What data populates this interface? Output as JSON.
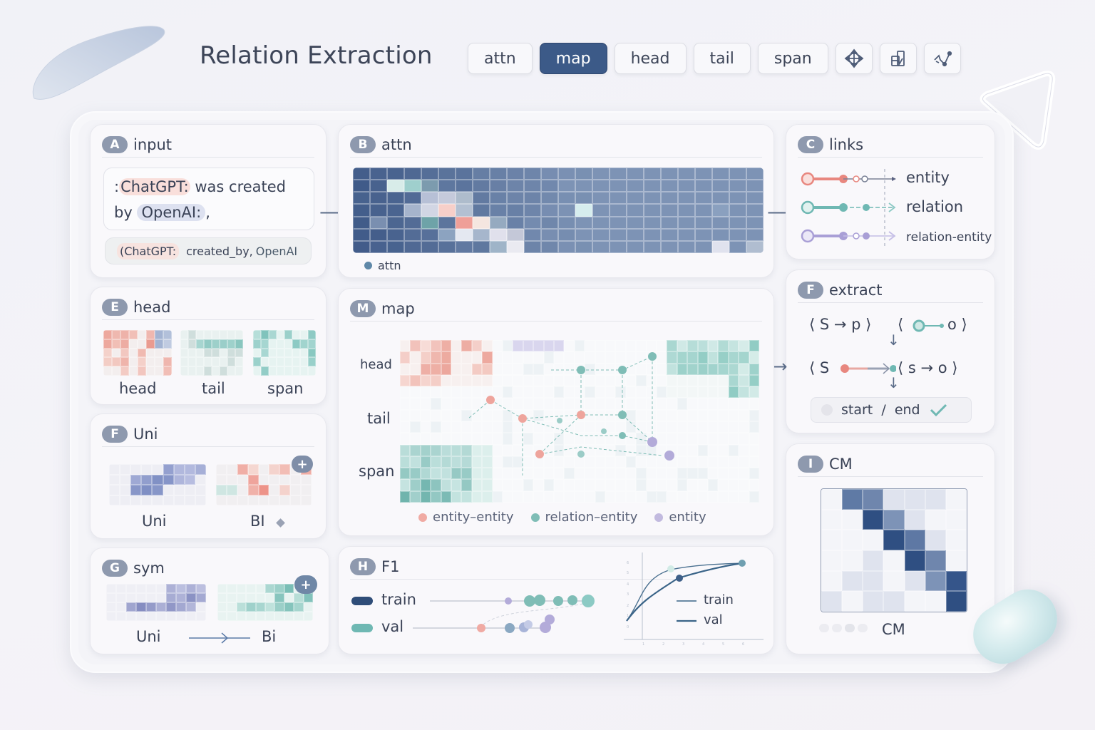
{
  "header": {
    "title": "Relation Extraction",
    "tabs": [
      {
        "label": "attn",
        "active": false
      },
      {
        "label": "map",
        "active": true
      },
      {
        "label": "head",
        "active": false
      },
      {
        "label": "tail",
        "active": false
      },
      {
        "label": "span",
        "active": false
      }
    ],
    "icon_buttons": [
      "move-icon",
      "chart-check-icon",
      "graph-link-icon"
    ]
  },
  "colors": {
    "accent": "#3c5a88",
    "entity": "#e8877f",
    "relation": "#6fb8b3",
    "relation_entity": "#a99fd6",
    "heat_dark": "#3e5784"
  },
  "panels": {
    "input": {
      "badge": "A",
      "title": "input",
      "sentence_prefix": ":",
      "subject": "ChatGPT:",
      "middle": " was created",
      "by": "by",
      "object": "OpenAI:",
      "suffix": ",",
      "triple_open": "(ChatGPT:",
      "triple_rel": "created_by,",
      "triple_obj": "OpenAI"
    },
    "attn": {
      "badge": "B",
      "title": "attn",
      "legend": "attn"
    },
    "links": {
      "badge": "C",
      "title": "links",
      "items": [
        {
          "label": "entity",
          "color": "#e8877f"
        },
        {
          "label": "relation",
          "color": "#6fb8b3"
        },
        {
          "label": "relation-entity",
          "color": "#a99fd6"
        }
      ]
    },
    "extract": {
      "badge": "F",
      "title": "extract",
      "row1_left": "⟨ S → p ⟩",
      "row1_right_open": "⟨",
      "row1_right_o": "o ⟩",
      "row2_left": "⟨ S",
      "row2_right": "⟨ s → o ⟩",
      "status": "start  /  end"
    },
    "head": {
      "badge": "E",
      "title": "head",
      "thumbs": [
        "head",
        "tail",
        "span"
      ]
    },
    "uni": {
      "badge": "F",
      "title": "Uni",
      "thumbs": [
        "Uni",
        "BI"
      ]
    },
    "sym": {
      "badge": "G",
      "title": "sym",
      "from": "Uni",
      "to": "Bi"
    },
    "map": {
      "badge": "M",
      "title": "map",
      "row_labels": [
        "head",
        "tail",
        "span"
      ],
      "legend": [
        "entity–entity",
        "relation–entity",
        "entity"
      ]
    },
    "f1": {
      "badge": "H",
      "title": "F1",
      "series": [
        "train",
        "val"
      ],
      "legend": [
        "train",
        "val"
      ]
    },
    "cm": {
      "badge": "I",
      "title": "CM",
      "caption": "CM"
    }
  },
  "chart_data": {
    "type": "line",
    "title": "F1",
    "x": [
      0,
      1,
      2,
      3,
      4,
      5,
      6
    ],
    "series": [
      {
        "name": "train",
        "values": [
          0.05,
          0.55,
          0.75,
          0.82,
          0.87,
          0.9,
          0.92
        ]
      },
      {
        "name": "val",
        "values": [
          0.05,
          0.4,
          0.58,
          0.7,
          0.8,
          0.87,
          0.92
        ]
      }
    ],
    "xlabel": "",
    "ylabel": "",
    "grid": false,
    "legend_position": "right"
  }
}
